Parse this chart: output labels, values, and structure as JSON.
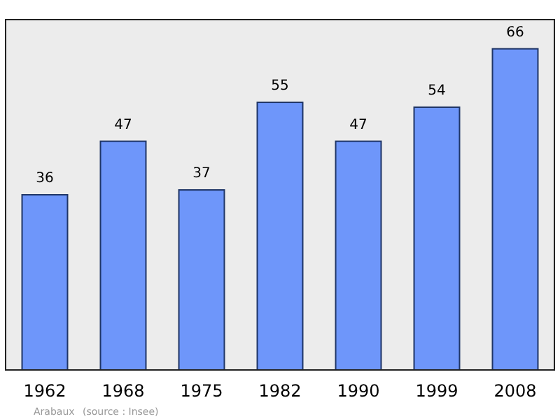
{
  "chart_data": {
    "type": "bar",
    "categories": [
      "1962",
      "1968",
      "1975",
      "1982",
      "1990",
      "1999",
      "2008"
    ],
    "values": [
      36,
      47,
      37,
      55,
      47,
      54,
      66
    ],
    "color": "#6e96fa",
    "data_labels": true,
    "ylim": [
      0,
      72
    ],
    "annotations": [
      "Arabaux",
      "(source : Insee)"
    ]
  }
}
